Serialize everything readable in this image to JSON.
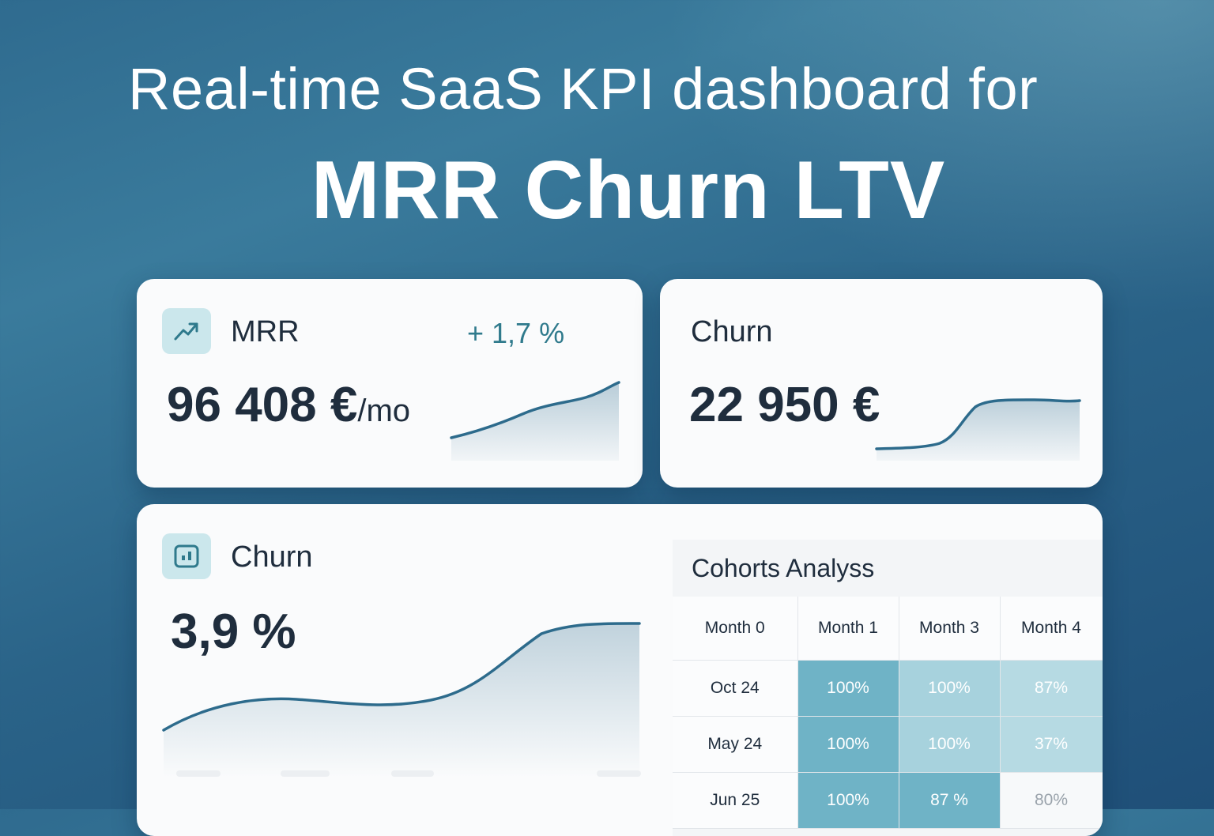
{
  "headline": {
    "line1": "Real-time SaaS KPI dashboard for",
    "line2": "MRR Churn LTV"
  },
  "cards": {
    "mrr": {
      "icon": "trending-up-icon",
      "title": "MRR",
      "delta": "+ 1,7 %",
      "value": "96 408 €",
      "unit": "/mo"
    },
    "churn_revenue": {
      "title": "Churn",
      "value": "22 950 €"
    },
    "churn_rate": {
      "icon": "chart-icon",
      "title": "Churn",
      "value": "3,9 %"
    }
  },
  "cohorts": {
    "title": "Cohorts Analyss",
    "headers": [
      "Month 0",
      "Month 1",
      "Month 3",
      "Month 4"
    ],
    "rows": [
      {
        "label": "Oct 24",
        "cells": [
          "100%",
          "100%",
          "87%"
        ]
      },
      {
        "label": "May 24",
        "cells": [
          "100%",
          "100%",
          "37%"
        ]
      },
      {
        "label": "Jun 25",
        "cells": [
          "100%",
          "87 %",
          "80%"
        ]
      }
    ],
    "colors": {
      "strong": "#6fb3c6",
      "medium": "#a7d2dd",
      "light": "#b6dae3",
      "empty": "#f7f9fa"
    }
  },
  "colors": {
    "line": "#2d6b8c",
    "accent": "#2f7a8c"
  }
}
